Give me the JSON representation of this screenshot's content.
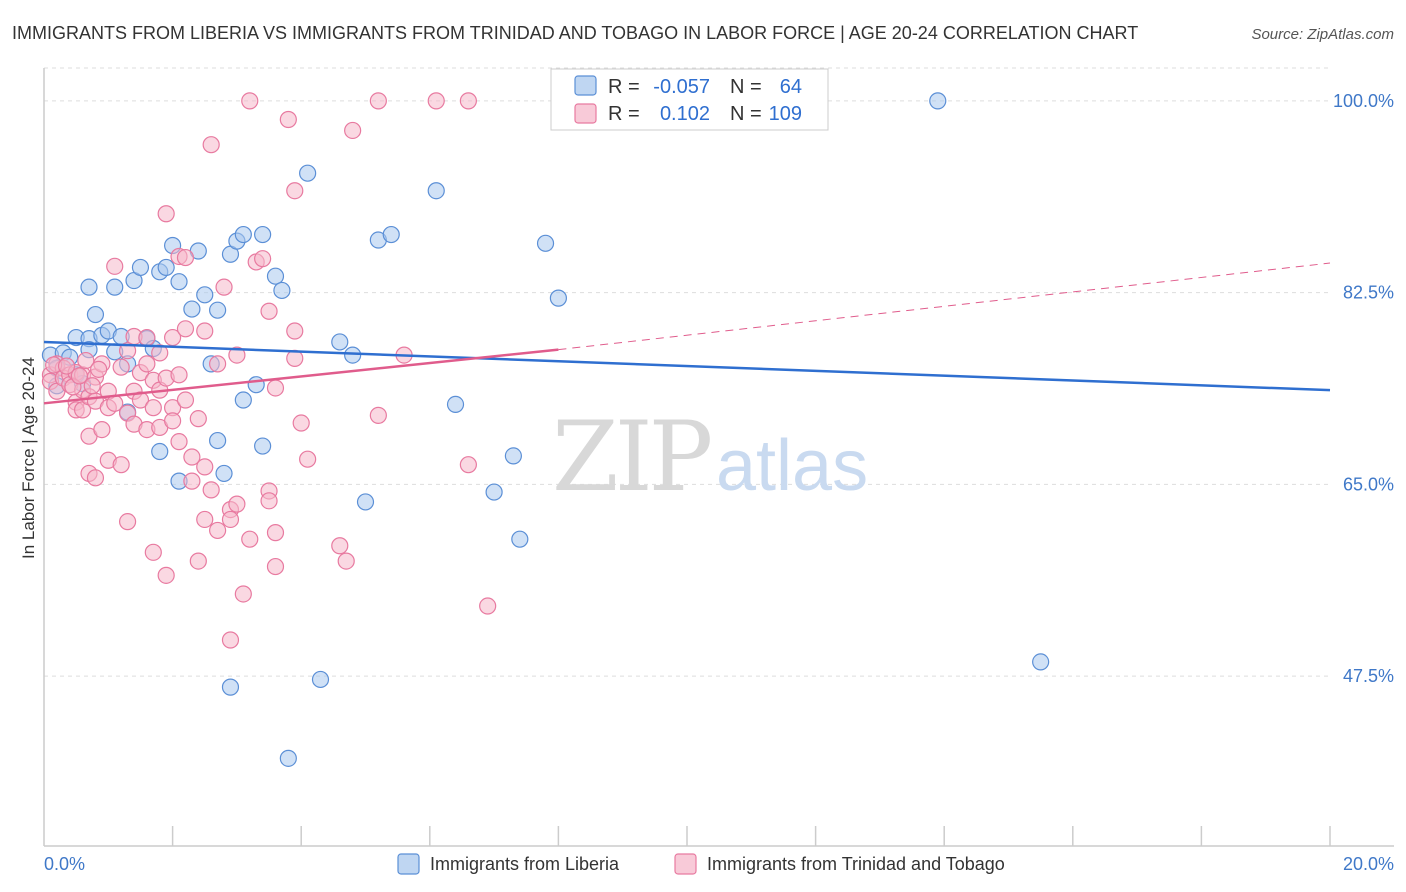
{
  "title": "IMMIGRANTS FROM LIBERIA VS IMMIGRANTS FROM TRINIDAD AND TOBAGO IN LABOR FORCE | AGE 20-24 CORRELATION CHART",
  "source": "Source: ZipAtlas.com",
  "watermark": {
    "zip": "ZIP",
    "atlas": "atlas"
  },
  "legend_box": {
    "rows": [
      {
        "r_label": "R =",
        "r_value": "-0.057",
        "n_label": "N =",
        "n_value": "64"
      },
      {
        "r_label": "R =",
        "r_value": "0.102",
        "n_label": "N =",
        "n_value": "109"
      }
    ]
  },
  "bottom_legend": {
    "items": [
      {
        "label": "Immigrants from Liberia"
      },
      {
        "label": "Immigrants from Trinidad and Tobago"
      }
    ]
  },
  "colors": {
    "liberia_fill": "#a9c8ee",
    "liberia_stroke": "#5b8fd6",
    "liberia_line": "#2f6fd0",
    "tt_fill": "#f5b8cb",
    "tt_stroke": "#e87aa0",
    "tt_line": "#e05c8c",
    "grid": "#dddddd",
    "axis_text": "#3f78c8"
  },
  "chart_data": {
    "type": "scatter",
    "title": "IMMIGRANTS FROM LIBERIA VS IMMIGRANTS FROM TRINIDAD AND TOBAGO IN LABOR FORCE | AGE 20-24 CORRELATION CHART",
    "xlabel": "",
    "ylabel": "In Labor Force | Age 20-24",
    "xlim": [
      0,
      20
    ],
    "ylim": [
      32,
      103
    ],
    "x_tick_labels": [
      "0.0%",
      "20.0%"
    ],
    "y_ticks": [
      47.5,
      65.0,
      82.5,
      100.0
    ],
    "y_tick_labels": [
      "47.5%",
      "65.0%",
      "82.5%",
      "100.0%"
    ],
    "grid": "horizontal dashed",
    "legend_position": "top-center",
    "series": [
      {
        "name": "Immigrants from Liberia",
        "r": -0.057,
        "n": 64,
        "trend": {
          "x0": 0,
          "y0": 78.0,
          "x1": 20,
          "y1": 73.6
        },
        "points": [
          [
            0.1,
            76.8
          ],
          [
            0.2,
            75.6
          ],
          [
            0.2,
            74.0
          ],
          [
            0.3,
            77.0
          ],
          [
            0.4,
            76.6
          ],
          [
            0.5,
            78.4
          ],
          [
            0.5,
            75.0
          ],
          [
            0.6,
            74.2
          ],
          [
            0.7,
            78.3
          ],
          [
            0.7,
            83.0
          ],
          [
            0.7,
            77.3
          ],
          [
            0.8,
            80.5
          ],
          [
            0.9,
            78.6
          ],
          [
            1.0,
            79.0
          ],
          [
            1.1,
            77.1
          ],
          [
            1.1,
            83.0
          ],
          [
            1.2,
            78.5
          ],
          [
            1.3,
            76.0
          ],
          [
            1.3,
            71.6
          ],
          [
            1.4,
            83.6
          ],
          [
            1.5,
            84.8
          ],
          [
            1.6,
            78.3
          ],
          [
            1.7,
            77.4
          ],
          [
            1.8,
            84.4
          ],
          [
            1.8,
            68.0
          ],
          [
            1.9,
            84.8
          ],
          [
            2.0,
            86.8
          ],
          [
            2.1,
            83.5
          ],
          [
            2.1,
            65.3
          ],
          [
            2.3,
            81.0
          ],
          [
            2.4,
            86.3
          ],
          [
            2.5,
            82.3
          ],
          [
            2.6,
            76.0
          ],
          [
            2.7,
            69.0
          ],
          [
            2.7,
            80.9
          ],
          [
            2.8,
            66.0
          ],
          [
            2.9,
            86.0
          ],
          [
            2.9,
            46.5
          ],
          [
            3.0,
            87.2
          ],
          [
            3.1,
            87.8
          ],
          [
            3.1,
            72.7
          ],
          [
            3.3,
            74.1
          ],
          [
            3.4,
            68.5
          ],
          [
            3.4,
            87.8
          ],
          [
            3.6,
            84.0
          ],
          [
            3.7,
            82.7
          ],
          [
            3.8,
            40.0
          ],
          [
            4.1,
            93.4
          ],
          [
            4.3,
            47.2
          ],
          [
            4.6,
            78.0
          ],
          [
            4.8,
            76.8
          ],
          [
            5.0,
            63.4
          ],
          [
            5.2,
            87.3
          ],
          [
            5.4,
            87.8
          ],
          [
            6.1,
            91.8
          ],
          [
            6.4,
            72.3
          ],
          [
            7.0,
            64.3
          ],
          [
            7.3,
            67.6
          ],
          [
            7.4,
            60.0
          ],
          [
            7.8,
            87.0
          ],
          [
            8.0,
            82.0
          ],
          [
            9.4,
            100.0
          ],
          [
            13.9,
            100.0
          ],
          [
            15.5,
            48.8
          ]
        ]
      },
      {
        "name": "Immigrants from Trinidad and Tobago",
        "r": 0.102,
        "n": 109,
        "trend": {
          "x0": 0,
          "y0": 72.4,
          "x1": 8,
          "y1": 77.3,
          "dashed_to": {
            "x": 20,
            "y": 85.2
          }
        },
        "points": [
          [
            0.1,
            75.0
          ],
          [
            0.1,
            74.4
          ],
          [
            0.2,
            76.0
          ],
          [
            0.2,
            73.5
          ],
          [
            0.3,
            75.6
          ],
          [
            0.3,
            74.7
          ],
          [
            0.4,
            75.0
          ],
          [
            0.4,
            74.1
          ],
          [
            0.5,
            75.2
          ],
          [
            0.5,
            72.5
          ],
          [
            0.5,
            71.8
          ],
          [
            0.6,
            73.6
          ],
          [
            0.6,
            75.0
          ],
          [
            0.6,
            71.8
          ],
          [
            0.7,
            73.0
          ],
          [
            0.7,
            69.4
          ],
          [
            0.7,
            66.0
          ],
          [
            0.8,
            74.8
          ],
          [
            0.8,
            72.6
          ],
          [
            0.8,
            65.6
          ],
          [
            0.9,
            76.0
          ],
          [
            0.9,
            70.0
          ],
          [
            1.0,
            73.5
          ],
          [
            1.0,
            72.0
          ],
          [
            1.0,
            67.2
          ],
          [
            1.1,
            72.4
          ],
          [
            1.1,
            84.9
          ],
          [
            1.2,
            75.7
          ],
          [
            1.2,
            66.8
          ],
          [
            1.3,
            77.2
          ],
          [
            1.3,
            71.5
          ],
          [
            1.3,
            61.6
          ],
          [
            1.4,
            78.5
          ],
          [
            1.4,
            73.5
          ],
          [
            1.4,
            70.5
          ],
          [
            1.5,
            75.2
          ],
          [
            1.5,
            72.7
          ],
          [
            1.6,
            78.4
          ],
          [
            1.6,
            76.0
          ],
          [
            1.6,
            70.0
          ],
          [
            1.7,
            74.5
          ],
          [
            1.7,
            72.0
          ],
          [
            1.7,
            58.8
          ],
          [
            1.8,
            77.0
          ],
          [
            1.8,
            73.6
          ],
          [
            1.8,
            70.2
          ],
          [
            1.9,
            89.7
          ],
          [
            1.9,
            74.7
          ],
          [
            1.9,
            56.7
          ],
          [
            2.0,
            72.0
          ],
          [
            2.0,
            70.8
          ],
          [
            2.0,
            78.4
          ],
          [
            2.1,
            85.8
          ],
          [
            2.1,
            75.0
          ],
          [
            2.1,
            68.9
          ],
          [
            2.2,
            85.7
          ],
          [
            2.2,
            79.2
          ],
          [
            2.2,
            72.7
          ],
          [
            2.3,
            67.5
          ],
          [
            2.3,
            65.3
          ],
          [
            2.4,
            71.0
          ],
          [
            2.4,
            58.0
          ],
          [
            2.5,
            79.0
          ],
          [
            2.5,
            66.6
          ],
          [
            2.5,
            61.8
          ],
          [
            2.6,
            96.0
          ],
          [
            2.6,
            64.5
          ],
          [
            2.7,
            76.0
          ],
          [
            2.7,
            60.8
          ],
          [
            2.8,
            83.0
          ],
          [
            2.9,
            62.7
          ],
          [
            2.9,
            61.8
          ],
          [
            2.9,
            50.8
          ],
          [
            3.0,
            76.8
          ],
          [
            3.0,
            63.2
          ],
          [
            3.1,
            55.0
          ],
          [
            3.2,
            60.0
          ],
          [
            3.2,
            100.0
          ],
          [
            3.3,
            85.3
          ],
          [
            3.4,
            85.6
          ],
          [
            3.5,
            64.4
          ],
          [
            3.5,
            63.5
          ],
          [
            3.5,
            80.8
          ],
          [
            3.6,
            73.8
          ],
          [
            3.6,
            60.6
          ],
          [
            3.6,
            57.5
          ],
          [
            3.8,
            98.3
          ],
          [
            3.9,
            91.8
          ],
          [
            3.9,
            76.5
          ],
          [
            3.9,
            79.0
          ],
          [
            4.0,
            70.6
          ],
          [
            4.1,
            67.3
          ],
          [
            4.6,
            59.4
          ],
          [
            4.7,
            58.0
          ],
          [
            4.8,
            97.3
          ],
          [
            5.2,
            100.0
          ],
          [
            5.2,
            71.3
          ],
          [
            5.6,
            76.8
          ],
          [
            6.1,
            100.0
          ],
          [
            6.6,
            100.0
          ],
          [
            6.6,
            66.8
          ],
          [
            6.9,
            53.9
          ],
          [
            0.15,
            75.9
          ],
          [
            0.35,
            75.8
          ],
          [
            0.45,
            73.9
          ],
          [
            0.55,
            74.9
          ],
          [
            0.65,
            76.3
          ],
          [
            0.75,
            74.0
          ],
          [
            0.85,
            75.5
          ]
        ]
      }
    ]
  }
}
